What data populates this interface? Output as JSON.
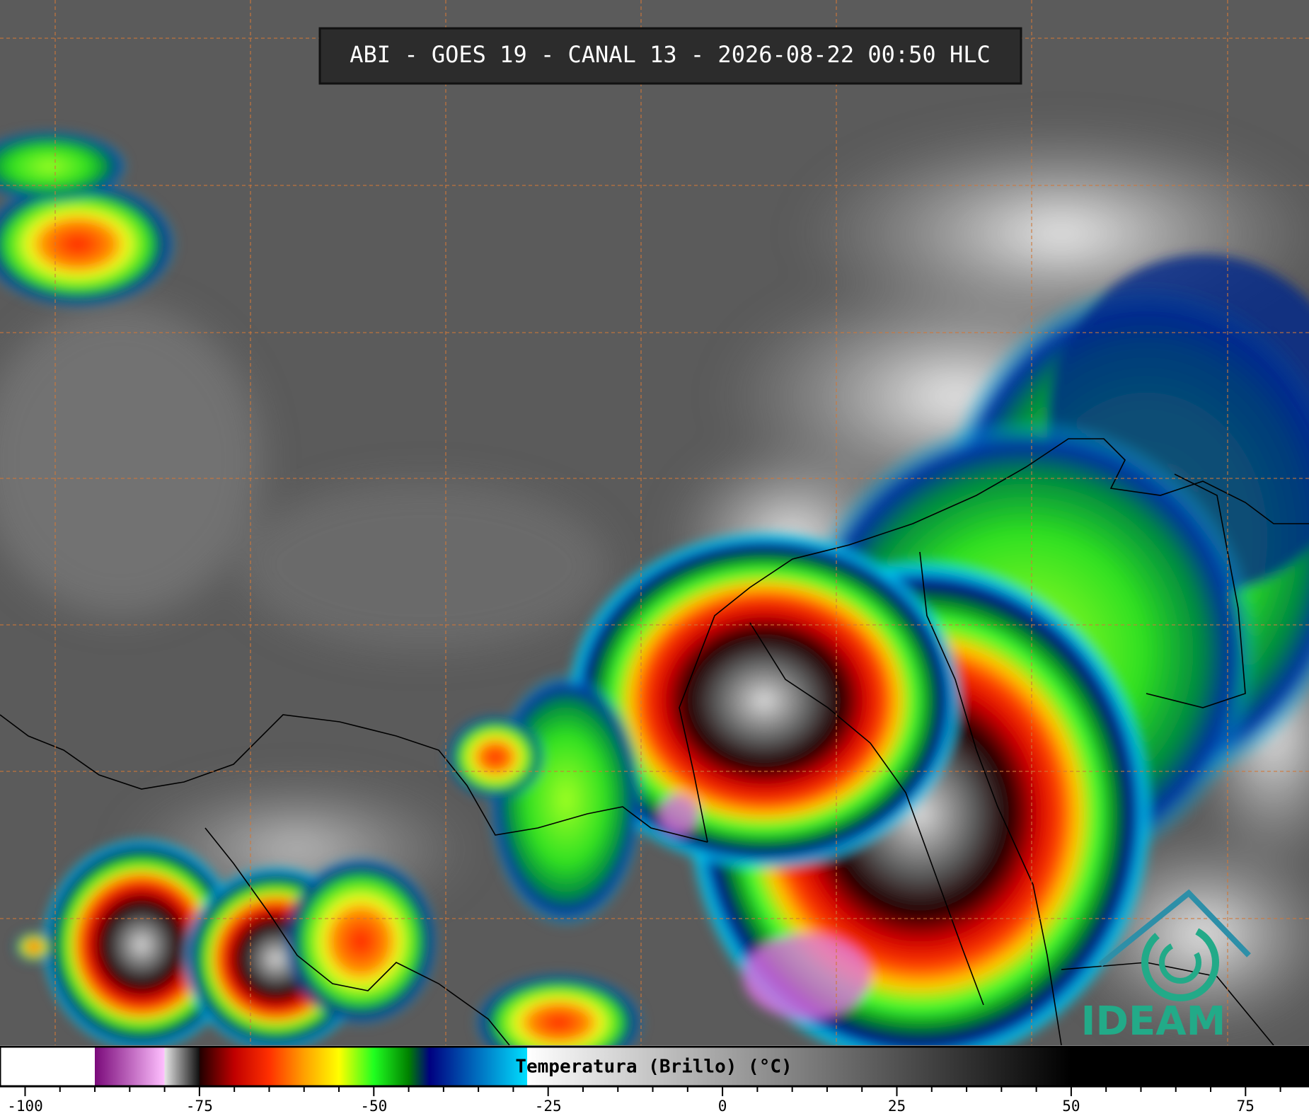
{
  "title": "ABI - GOES 19 - CANAL 13 - 2026-08-22 00:50 HLC",
  "logo": "IDEAM",
  "colorbar": {
    "label": "Temperatura (Brillo) (°C)",
    "xlim": [
      -103.6,
      84.1
    ],
    "xticks": [
      -100,
      -75,
      -50,
      -25,
      0,
      25,
      50,
      75
    ],
    "minor_xticks": [
      -95,
      -90,
      -85,
      -80,
      -70,
      -65,
      -60,
      -55,
      -45,
      -40,
      -35,
      -30,
      -20,
      -15,
      -10,
      -5,
      5,
      10,
      15,
      20,
      30,
      35,
      40,
      45,
      55,
      60,
      65,
      70,
      80
    ],
    "stops": [
      {
        "value": -90,
        "color": "#ffffff"
      },
      {
        "value": -90,
        "color": "#7a0a7a"
      },
      {
        "value": -80,
        "color": "#ffc0ff"
      },
      {
        "value": -80,
        "color": "#e6e6e6"
      },
      {
        "value": -75,
        "color": "#101010"
      },
      {
        "value": -75,
        "color": "#200000"
      },
      {
        "value": -70,
        "color": "#c00000"
      },
      {
        "value": -65,
        "color": "#ff3000"
      },
      {
        "value": -60,
        "color": "#ffa000"
      },
      {
        "value": -55,
        "color": "#ffff00"
      },
      {
        "value": -50,
        "color": "#20ff20"
      },
      {
        "value": -45,
        "color": "#008000"
      },
      {
        "value": -42,
        "color": "#000080"
      },
      {
        "value": -35,
        "color": "#0070c0"
      },
      {
        "value": -28,
        "color": "#00e0ff"
      },
      {
        "value": -28,
        "color": "#ffffff"
      },
      {
        "value": 50,
        "color": "#000000"
      }
    ]
  }
}
